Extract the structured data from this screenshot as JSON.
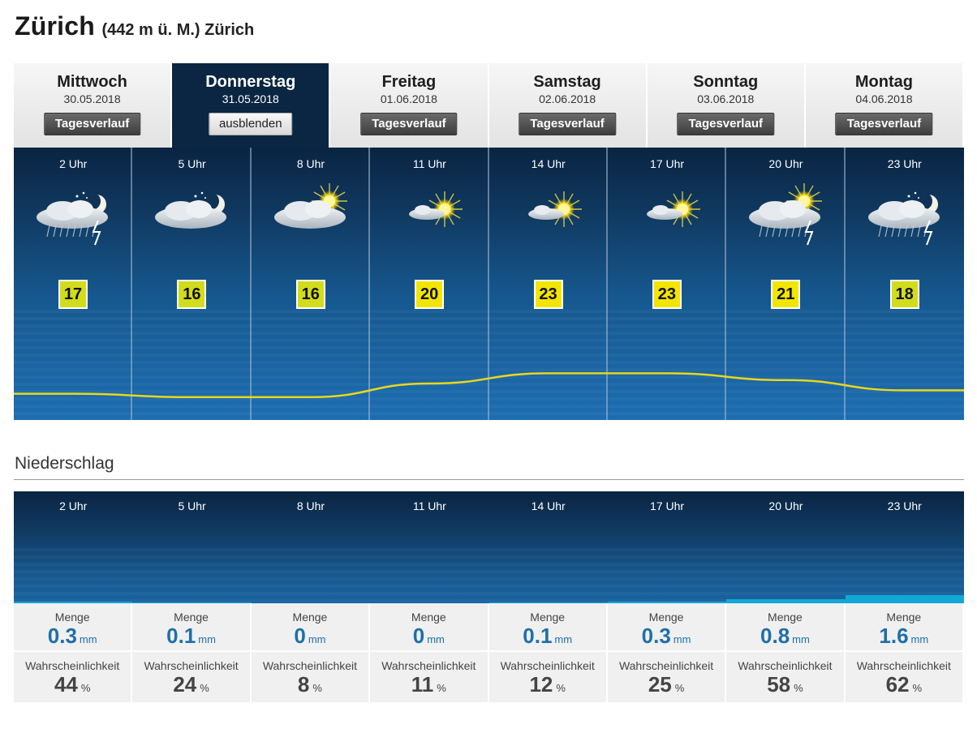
{
  "location": {
    "city": "Zürich",
    "subtitle": "(442 m ü. M.) Zürich"
  },
  "days": [
    {
      "name": "Mittwoch",
      "date": "30.05.2018",
      "button": "Tagesverlauf",
      "active": false
    },
    {
      "name": "Donnerstag",
      "date": "31.05.2018",
      "button": "ausblenden",
      "active": true
    },
    {
      "name": "Freitag",
      "date": "01.06.2018",
      "button": "Tagesverlauf",
      "active": false
    },
    {
      "name": "Samstag",
      "date": "02.06.2018",
      "button": "Tagesverlauf",
      "active": false
    },
    {
      "name": "Sonntag",
      "date": "03.06.2018",
      "button": "Tagesverlauf",
      "active": false
    },
    {
      "name": "Montag",
      "date": "04.06.2018",
      "button": "Tagesverlauf",
      "active": false
    }
  ],
  "hours": [
    {
      "label": "2 Uhr",
      "icon": "night-thunderstorm-icon",
      "temp": 17
    },
    {
      "label": "5 Uhr",
      "icon": "night-cloudy-icon",
      "temp": 16
    },
    {
      "label": "8 Uhr",
      "icon": "sun-cloudy-icon",
      "temp": 16
    },
    {
      "label": "11 Uhr",
      "icon": "sun-light-cloud-icon",
      "temp": 20
    },
    {
      "label": "14 Uhr",
      "icon": "sun-light-cloud-icon",
      "temp": 23
    },
    {
      "label": "17 Uhr",
      "icon": "sun-light-cloud-icon",
      "temp": 23
    },
    {
      "label": "20 Uhr",
      "icon": "sun-thunderstorm-icon",
      "temp": 21
    },
    {
      "label": "23 Uhr",
      "icon": "night-thunderstorm-icon",
      "temp": 18
    }
  ],
  "precipitation": {
    "heading": "Niederschlag",
    "amount_label": "Menge",
    "amount_unit": "mm",
    "probability_label": "Wahrscheinlichkeit",
    "probability_unit": "%",
    "entries": [
      {
        "hour": "2 Uhr",
        "amount": "0.3",
        "probability": "44"
      },
      {
        "hour": "5 Uhr",
        "amount": "0.1",
        "probability": "24"
      },
      {
        "hour": "8 Uhr",
        "amount": "0",
        "probability": "8"
      },
      {
        "hour": "11 Uhr",
        "amount": "0",
        "probability": "11"
      },
      {
        "hour": "14 Uhr",
        "amount": "0.1",
        "probability": "12"
      },
      {
        "hour": "17 Uhr",
        "amount": "0.3",
        "probability": "25"
      },
      {
        "hour": "20 Uhr",
        "amount": "0.8",
        "probability": "58"
      },
      {
        "hour": "23 Uhr",
        "amount": "1.6",
        "probability": "62"
      }
    ]
  },
  "colors": {
    "panel_dark": "#0a2442",
    "panel_light": "#1c6db0",
    "temp_curve": "#e8d81a",
    "temp_warm": "#f2e500",
    "temp_mild": "#d2dc1c",
    "precip_bar": "#11a8d8",
    "precip_value": "#1e6fa8"
  }
}
